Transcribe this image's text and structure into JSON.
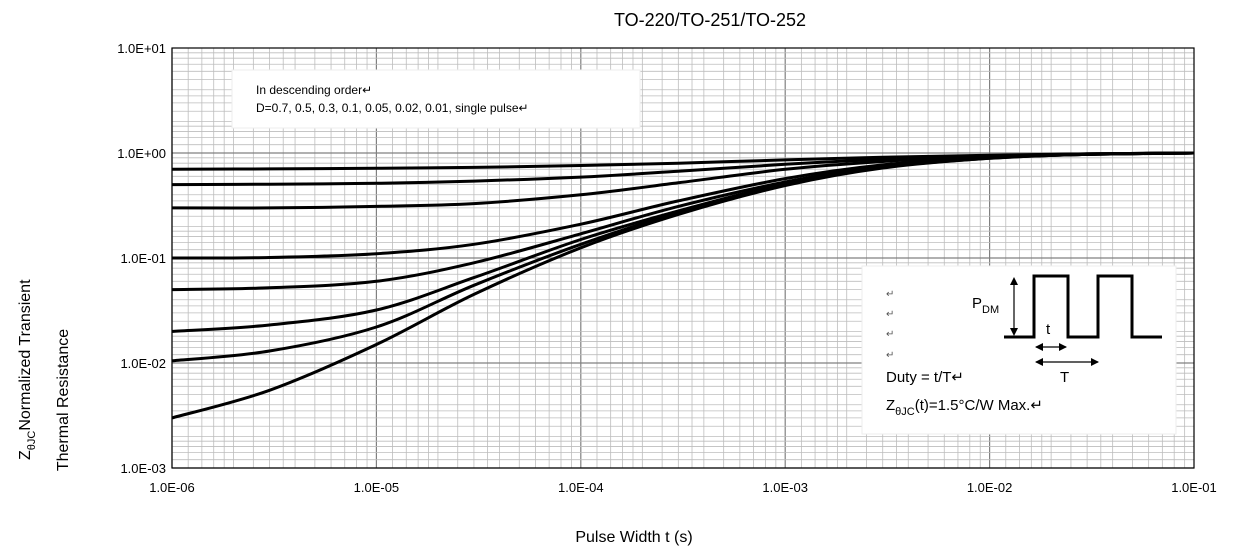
{
  "chart_data": {
    "type": "line",
    "title": "TO-220/TO-251/TO-252",
    "xlabel": "Pulse Width t (s)",
    "ylabel": {
      "prefix": "Z",
      "prefix_sub": "θJC",
      "line1": "Normalized Transient",
      "line2": "Thermal Resistance"
    },
    "xscale": "log",
    "yscale": "log",
    "xlim": [
      1e-06,
      0.1
    ],
    "ylim": [
      0.001,
      10
    ],
    "grid": true,
    "x_tick_labels": [
      "1.0E-06",
      "1.0E-05",
      "1.0E-04",
      "1.0E-03",
      "1.0E-02",
      "1.0E-01"
    ],
    "y_tick_labels": [
      "1.0E+01",
      "1.0E+00",
      "1.0E-01",
      "1.0E-02",
      "1.0E-03"
    ],
    "x": [
      1e-06,
      3e-06,
      1e-05,
      3e-05,
      0.0001,
      0.0003,
      0.001,
      0.003,
      0.01,
      0.03,
      0.1
    ],
    "series": [
      {
        "values": [
          0.7,
          0.705,
          0.715,
          0.73,
          0.76,
          0.8,
          0.86,
          0.91,
          0.95,
          0.98,
          1.0
        ]
      },
      {
        "values": [
          0.5,
          0.505,
          0.515,
          0.54,
          0.59,
          0.67,
          0.78,
          0.87,
          0.94,
          0.98,
          1.0
        ]
      },
      {
        "values": [
          0.3,
          0.3,
          0.31,
          0.33,
          0.4,
          0.52,
          0.7,
          0.83,
          0.93,
          0.98,
          1.0
        ]
      },
      {
        "values": [
          0.1,
          0.101,
          0.11,
          0.135,
          0.21,
          0.35,
          0.57,
          0.77,
          0.91,
          0.97,
          1.0
        ]
      },
      {
        "values": [
          0.05,
          0.052,
          0.06,
          0.09,
          0.17,
          0.31,
          0.53,
          0.75,
          0.9,
          0.97,
          1.0
        ]
      },
      {
        "values": [
          0.02,
          0.023,
          0.032,
          0.065,
          0.15,
          0.28,
          0.51,
          0.74,
          0.9,
          0.97,
          1.0
        ]
      },
      {
        "values": [
          0.0105,
          0.013,
          0.022,
          0.055,
          0.135,
          0.27,
          0.5,
          0.73,
          0.89,
          0.97,
          1.0
        ]
      },
      {
        "values": [
          0.003,
          0.0055,
          0.015,
          0.045,
          0.125,
          0.26,
          0.49,
          0.72,
          0.89,
          0.97,
          1.0
        ]
      }
    ],
    "annotations": {
      "legend_box": {
        "line1": "In descending order↵",
        "line2": "D=0.7, 0.5, 0.3, 0.1, 0.05, 0.02, 0.01, single pulse↵"
      },
      "pulse_box": {
        "return_mark": "↵",
        "pdm": "P",
        "pdm_sub": "DM",
        "t_label": "t",
        "T_label": "T",
        "duty": "Duty = t/T↵",
        "z_prefix": "Z",
        "z_sub": "θJC",
        "z_text": "(t)=1.5°C/W Max.↵"
      }
    }
  }
}
